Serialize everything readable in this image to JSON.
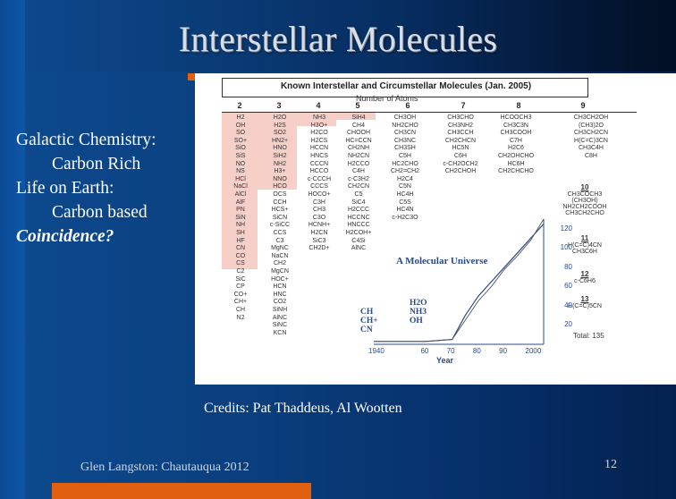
{
  "slide": {
    "title": "Interstellar Molecules",
    "bullets": [
      {
        "text": "Galactic Chemistry:",
        "indent": false,
        "emph": false
      },
      {
        "text": "Carbon Rich",
        "indent": true,
        "emph": false
      },
      {
        "text": "Life on Earth:",
        "indent": false,
        "emph": false
      },
      {
        "text": "Carbon based",
        "indent": true,
        "emph": false
      },
      {
        "text": "Coincidence?",
        "indent": false,
        "emph": true
      }
    ],
    "credits": "Credits: Pat Thaddeus, Al Wootten",
    "footer": "Glen Langston: Chautauqua 2012",
    "page_number": "12",
    "colors": {
      "background": "#0a3f7e",
      "accent": "#e06010",
      "figure_pink": "#f6cfc9",
      "figure_blue": "#2b4a8a"
    }
  },
  "figure": {
    "title": "Known Interstellar and Circumstellar Molecules (Jan. 2005)",
    "subtitle": "Number of Atoms",
    "column_headers": [
      "2",
      "3",
      "4",
      "5",
      "6",
      "7",
      "8",
      "9"
    ],
    "columns": [
      [
        "H2",
        "OH",
        "SO",
        "SO+",
        "SiO",
        "SiS",
        "NO",
        "NS",
        "HCl",
        "NaCl",
        "AlCl",
        "AlF",
        "PN",
        "SiN",
        "NH",
        "SH",
        "HF",
        "CN",
        "CO",
        "CS",
        "C2",
        "SiC",
        "CP",
        "CO+",
        "CH+",
        "CH",
        "N2"
      ],
      [
        "H2O",
        "H2S",
        "SO2",
        "HN2+",
        "HNO",
        "SiH2",
        "NH2",
        "H3+",
        "NNO",
        "HCO",
        "OCS",
        "CCH",
        "HCS+",
        "SiCN",
        "c-SiCC",
        "CCS",
        "C3",
        "MgNC",
        "NaCN",
        "CH2",
        "MgCN",
        "HOC+",
        "HCN",
        "HNC",
        "CO2",
        "SiNH",
        "AlNC",
        "SiNC",
        "KCN"
      ],
      [
        "NH3",
        "H3O+",
        "H2CO",
        "H2CS",
        "HCCN",
        "HNCS",
        "CCCN",
        "HCCO",
        "c-CCCH",
        "CCCS",
        "HOCO+",
        "C3H",
        "CH3",
        "C3O",
        "HCNH+",
        "H2CN",
        "SiC3",
        "CH2D+"
      ],
      [
        "SiH4",
        "CH4",
        "CHOOH",
        "HC=CCN",
        "CH2NH",
        "NH2CN",
        "H2CCO",
        "C4H",
        "c-C3H2",
        "CH2CN",
        "C5",
        "SiC4",
        "H2CCC",
        "HCCNC",
        "HNCCC",
        "H2COH+",
        "C4Si",
        "AlNC"
      ],
      [
        "CH3OH",
        "NH2CHO",
        "CH3CN",
        "CH3NC",
        "CH3SH",
        "C5H",
        "HC2CHO",
        "CH2=CH2",
        "H2C4",
        "C5N",
        "HC4H",
        "C5S",
        "HC4N",
        "c-H2C3O"
      ],
      [
        "CH3CHO",
        "CH3NH2",
        "CH3CCH",
        "CH2CHCN",
        "HC5N",
        "C6H",
        "c-CH2OCH2",
        "CH2CHOH"
      ],
      [
        "HCOOCH3",
        "CH3C3N",
        "CH3COOH",
        "C7H",
        "H2C6",
        "CH2OHCHO",
        "HC6H",
        "CH2CHCHO"
      ],
      [
        "CH3CH2OH",
        "(CH3)2O",
        "CH3CH2CN",
        "H(C=C)3CN",
        "CH3C4H",
        "C8H"
      ]
    ],
    "extra_counts": [
      {
        "count": "10",
        "molecules": [
          "CH3COCH3",
          "(CH3OH)",
          "NH2CH2COOH",
          "CH3CH2CHO"
        ]
      },
      {
        "count": "11",
        "molecules": [
          "H(C=C)4CN",
          "CH3C6H"
        ]
      },
      {
        "count": "12",
        "molecules": [
          "c-C6H6"
        ]
      },
      {
        "count": "13",
        "molecules": [
          "H(C=C)5CN"
        ]
      }
    ],
    "total": "Total: 135",
    "chart_title": "A Molecular Universe",
    "early_molecules": [
      "CH",
      "CH+",
      "CN"
    ],
    "later_molecules": [
      "H2O",
      "NH3",
      "OH"
    ],
    "chart_data": {
      "type": "line",
      "title": "A Molecular Universe",
      "xlabel": "Year",
      "ylabel": "",
      "x": [
        1940,
        1960,
        1970,
        1975,
        1980,
        1985,
        1990,
        1995,
        2000,
        2005
      ],
      "series": [
        {
          "values": [
            3,
            3,
            5,
            30,
            50,
            65,
            80,
            95,
            110,
            125
          ]
        },
        {
          "values": [
            3,
            3,
            5,
            25,
            45,
            60,
            78,
            92,
            108,
            130
          ]
        }
      ],
      "x_ticks": [
        "1940",
        "60",
        "70",
        "80",
        "90",
        "2000"
      ],
      "y_ticks": [
        "20",
        "40",
        "60",
        "80",
        "100",
        "120"
      ],
      "xlim": [
        1940,
        2005
      ],
      "ylim": [
        0,
        130
      ],
      "grid": false,
      "legend": "none"
    }
  }
}
